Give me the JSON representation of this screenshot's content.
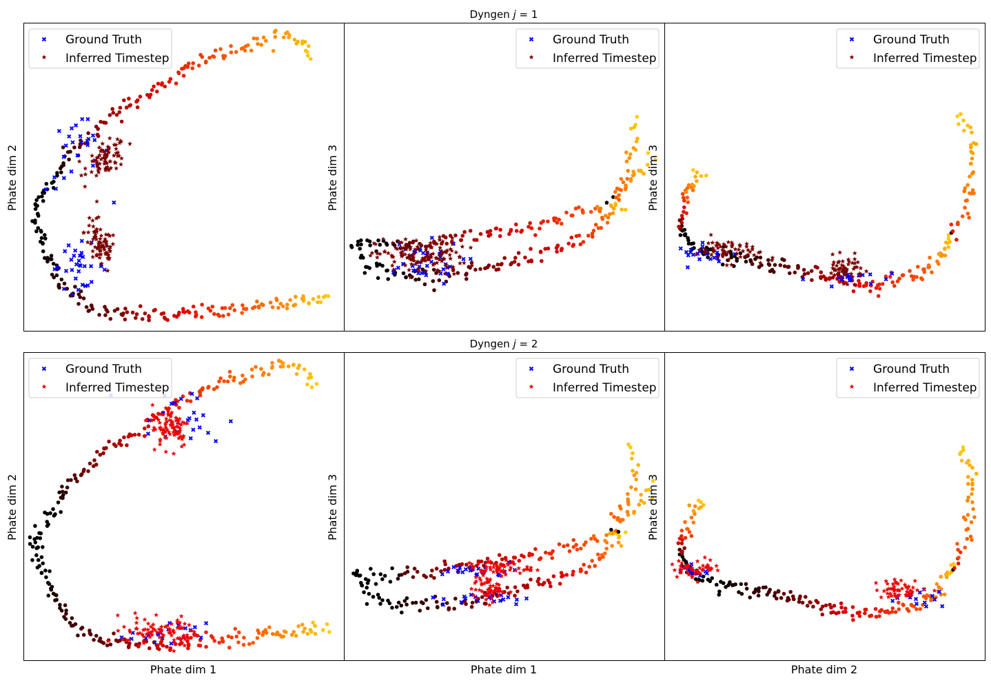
{
  "figure": {
    "titles": [
      "Dyngen j = 1",
      "Dyngen j = 2"
    ],
    "row_title_prefix": "Dyngen",
    "row_title_var": "j",
    "row_title_values": [
      "= 1",
      "= 2"
    ]
  },
  "colors": {
    "ground_truth": "#0000ff",
    "inferred_row1": "#7a0000",
    "inferred_row2": "#ee0000",
    "traj_stops": [
      "#000000",
      "#660000",
      "#dd0000",
      "#ff5500",
      "#ffcc00"
    ]
  },
  "chart_data": [
    {
      "type": "scatter",
      "row": 0,
      "col": 0,
      "xlabel": "",
      "ylabel": "Phate dim 2",
      "legend": {
        "placement": "upper-left",
        "entries": [
          "Ground Truth",
          "Inferred Timestep"
        ]
      },
      "trajectory": [
        {
          "curve": [
            [
              0.04,
              0.4
            ],
            [
              0.05,
              0.31
            ],
            [
              0.09,
              0.22
            ],
            [
              0.12,
              0.15
            ],
            [
              0.18,
              0.1
            ],
            [
              0.24,
              0.06
            ],
            [
              0.34,
              0.05
            ],
            [
              0.49,
              0.05
            ],
            [
              0.66,
              0.07
            ],
            [
              0.8,
              0.09
            ],
            [
              0.95,
              0.11
            ]
          ],
          "t": [
            0.1,
            0.38,
            0.58,
            0.78,
            1.0
          ],
          "n": 150
        },
        {
          "curve": [
            [
              0.04,
              0.4
            ],
            [
              0.09,
              0.48
            ],
            [
              0.13,
              0.56
            ],
            [
              0.2,
              0.63
            ],
            [
              0.28,
              0.7
            ],
            [
              0.36,
              0.75
            ],
            [
              0.46,
              0.82
            ],
            [
              0.54,
              0.87
            ],
            [
              0.63,
              0.91
            ],
            [
              0.73,
              0.93
            ],
            [
              0.82,
              0.96
            ],
            [
              0.87,
              0.94
            ],
            [
              0.9,
              0.89
            ]
          ],
          "t": [
            0.1,
            0.22,
            0.48,
            0.73,
            1.0
          ],
          "n": 130
        }
      ],
      "ground_truth": [
        {
          "cx": 0.17,
          "cy": 0.21,
          "sx": 0.045,
          "sy": 0.035,
          "n": 32
        },
        {
          "cx": 0.17,
          "cy": 0.57,
          "sx": 0.05,
          "sy": 0.06,
          "n": 26
        }
      ],
      "inferred": [
        {
          "cx": 0.24,
          "cy": 0.28,
          "sx": 0.025,
          "sy": 0.04,
          "r": -0.5,
          "n": 75
        },
        {
          "cx": 0.26,
          "cy": 0.56,
          "sx": 0.03,
          "sy": 0.025,
          "r": 0.5,
          "n": 75
        }
      ]
    },
    {
      "type": "scatter",
      "row": 0,
      "col": 1,
      "xlabel": "",
      "ylabel": "Phate dim 3",
      "legend": {
        "placement": "upper-right",
        "entries": [
          "Ground Truth",
          "Inferred Timestep"
        ]
      },
      "trajectory": [
        {
          "curve": [
            [
              0.04,
              0.28
            ],
            [
              0.08,
              0.21
            ],
            [
              0.16,
              0.18
            ],
            [
              0.3,
              0.18
            ],
            [
              0.45,
              0.2
            ],
            [
              0.6,
              0.25
            ],
            [
              0.7,
              0.28
            ],
            [
              0.77,
              0.31
            ],
            [
              0.82,
              0.36
            ],
            [
              0.87,
              0.41
            ]
          ],
          "t": [
            0.12,
            0.42,
            0.75,
            0.9,
            1.0
          ],
          "n": 110
        },
        {
          "curve": [
            [
              0.04,
              0.28
            ],
            [
              0.12,
              0.28
            ],
            [
              0.25,
              0.28
            ],
            [
              0.4,
              0.31
            ],
            [
              0.58,
              0.34
            ],
            [
              0.7,
              0.37
            ],
            [
              0.78,
              0.39
            ],
            [
              0.85,
              0.41
            ]
          ],
          "t": [
            0.12,
            0.2,
            0.6,
            0.92,
            1.0
          ],
          "n": 90
        },
        {
          "curve": [
            [
              0.84,
              0.43
            ],
            [
              0.9,
              0.5
            ],
            [
              0.93,
              0.53
            ],
            [
              0.96,
              0.56
            ]
          ],
          "t": [
            0.0,
            0.0,
            0.0,
            0.0,
            1.0
          ],
          "n": 20
        },
        {
          "curve": [
            [
              0.84,
              0.43
            ],
            [
              0.9,
              0.55
            ],
            [
              0.91,
              0.63
            ],
            [
              0.9,
              0.7
            ]
          ],
          "t": [
            0.0,
            0.0,
            0.0,
            0.0,
            1.0
          ],
          "n": 20
        }
      ],
      "ground_truth": [
        {
          "cx": 0.23,
          "cy": 0.22,
          "sx": 0.07,
          "sy": 0.035,
          "n": 40
        }
      ],
      "inferred": [
        {
          "cx": 0.24,
          "cy": 0.24,
          "sx": 0.07,
          "sy": 0.03,
          "r": 0,
          "n": 130
        }
      ]
    },
    {
      "type": "scatter",
      "row": 0,
      "col": 2,
      "xlabel": "",
      "ylabel": "Phate dim 3",
      "legend": {
        "placement": "upper-right",
        "entries": [
          "Ground Truth",
          "Inferred Timestep"
        ]
      },
      "trajectory": [
        {
          "curve": [
            [
              0.05,
              0.33
            ],
            [
              0.1,
              0.27
            ],
            [
              0.2,
              0.24
            ],
            [
              0.33,
              0.22
            ],
            [
              0.45,
              0.19
            ],
            [
              0.55,
              0.16
            ],
            [
              0.68,
              0.15
            ],
            [
              0.78,
              0.18
            ],
            [
              0.86,
              0.23
            ],
            [
              0.9,
              0.3
            ]
          ],
          "t": [
            0.15,
            0.42,
            0.6,
            0.86,
            1.0
          ],
          "n": 150
        },
        {
          "curve": [
            [
              0.05,
              0.33
            ],
            [
              0.06,
              0.4
            ],
            [
              0.09,
              0.47
            ],
            [
              0.12,
              0.52
            ]
          ],
          "t": [
            0.0,
            0.05,
            0.25,
            0.5,
            1.0
          ],
          "n": 30
        },
        {
          "curve": [
            [
              0.9,
              0.3
            ],
            [
              0.93,
              0.38
            ],
            [
              0.95,
              0.44
            ],
            [
              0.96,
              0.52
            ],
            [
              0.96,
              0.6
            ],
            [
              0.94,
              0.66
            ],
            [
              0.92,
              0.7
            ]
          ],
          "t": [
            0.0,
            0.0,
            0.0,
            0.18,
            1.0
          ],
          "n": 40
        }
      ],
      "ground_truth": [
        {
          "cx": 0.13,
          "cy": 0.25,
          "sx": 0.045,
          "sy": 0.015,
          "n": 22
        },
        {
          "cx": 0.6,
          "cy": 0.17,
          "sx": 0.07,
          "sy": 0.012,
          "n": 18
        }
      ],
      "inferred": [
        {
          "cx": 0.2,
          "cy": 0.26,
          "sx": 0.05,
          "sy": 0.02,
          "r": -0.3,
          "n": 60
        },
        {
          "cx": 0.56,
          "cy": 0.2,
          "sx": 0.03,
          "sy": 0.02,
          "r": 0,
          "n": 55
        }
      ]
    },
    {
      "type": "scatter",
      "row": 1,
      "col": 0,
      "xlabel": "Phate dim 1",
      "ylabel": "Phate dim 2",
      "legend": {
        "placement": "upper-left",
        "entries": [
          "Ground Truth",
          "Inferred Timestep"
        ]
      },
      "trajectory": [
        {
          "curve": [
            [
              0.04,
              0.4
            ],
            [
              0.05,
              0.31
            ],
            [
              0.09,
              0.22
            ],
            [
              0.12,
              0.15
            ],
            [
              0.18,
              0.1
            ],
            [
              0.24,
              0.06
            ],
            [
              0.34,
              0.05
            ],
            [
              0.49,
              0.05
            ],
            [
              0.66,
              0.07
            ],
            [
              0.8,
              0.09
            ],
            [
              0.95,
              0.11
            ]
          ],
          "t": [
            0.1,
            0.38,
            0.58,
            0.78,
            1.0
          ],
          "n": 150
        },
        {
          "curve": [
            [
              0.04,
              0.4
            ],
            [
              0.09,
              0.48
            ],
            [
              0.13,
              0.56
            ],
            [
              0.2,
              0.63
            ],
            [
              0.28,
              0.7
            ],
            [
              0.36,
              0.75
            ],
            [
              0.46,
              0.82
            ],
            [
              0.54,
              0.87
            ],
            [
              0.63,
              0.91
            ],
            [
              0.73,
              0.93
            ],
            [
              0.82,
              0.96
            ],
            [
              0.87,
              0.94
            ],
            [
              0.9,
              0.89
            ]
          ],
          "t": [
            0.1,
            0.22,
            0.48,
            0.73,
            1.0
          ],
          "n": 130
        }
      ],
      "ground_truth": [
        {
          "cx": 0.45,
          "cy": 0.08,
          "sx": 0.06,
          "sy": 0.02,
          "n": 20
        },
        {
          "cx": 0.48,
          "cy": 0.78,
          "sx": 0.08,
          "sy": 0.05,
          "n": 24
        }
      ],
      "inferred": [
        {
          "cx": 0.38,
          "cy": 0.1,
          "sx": 0.035,
          "sy": 0.025,
          "r": 0,
          "n": 45
        },
        {
          "cx": 0.48,
          "cy": 0.09,
          "sx": 0.03,
          "sy": 0.025,
          "r": 0,
          "n": 45
        },
        {
          "cx": 0.46,
          "cy": 0.76,
          "sx": 0.03,
          "sy": 0.035,
          "r": 0,
          "n": 80
        }
      ]
    },
    {
      "type": "scatter",
      "row": 1,
      "col": 1,
      "xlabel": "Phate dim 1",
      "ylabel": "Phate dim 3",
      "legend": {
        "placement": "upper-right",
        "entries": [
          "Ground Truth",
          "Inferred Timestep"
        ]
      },
      "trajectory": [
        {
          "curve": [
            [
              0.04,
              0.28
            ],
            [
              0.08,
              0.21
            ],
            [
              0.16,
              0.18
            ],
            [
              0.3,
              0.18
            ],
            [
              0.45,
              0.2
            ],
            [
              0.6,
              0.25
            ],
            [
              0.7,
              0.28
            ],
            [
              0.77,
              0.31
            ],
            [
              0.82,
              0.36
            ],
            [
              0.87,
              0.41
            ]
          ],
          "t": [
            0.12,
            0.42,
            0.75,
            0.9,
            1.0
          ],
          "n": 110
        },
        {
          "curve": [
            [
              0.04,
              0.28
            ],
            [
              0.12,
              0.28
            ],
            [
              0.25,
              0.28
            ],
            [
              0.4,
              0.31
            ],
            [
              0.58,
              0.34
            ],
            [
              0.7,
              0.37
            ],
            [
              0.78,
              0.39
            ],
            [
              0.85,
              0.41
            ]
          ],
          "t": [
            0.12,
            0.2,
            0.6,
            0.92,
            1.0
          ],
          "n": 90
        },
        {
          "curve": [
            [
              0.84,
              0.43
            ],
            [
              0.9,
              0.5
            ],
            [
              0.93,
              0.53
            ],
            [
              0.96,
              0.56
            ]
          ],
          "t": [
            0.0,
            0.0,
            0.0,
            0.0,
            1.0
          ],
          "n": 20
        },
        {
          "curve": [
            [
              0.84,
              0.43
            ],
            [
              0.9,
              0.55
            ],
            [
              0.91,
              0.63
            ],
            [
              0.9,
              0.7
            ]
          ],
          "t": [
            0.0,
            0.0,
            0.0,
            0.0,
            1.0
          ],
          "n": 20
        }
      ],
      "ground_truth": [
        {
          "cx": 0.42,
          "cy": 0.29,
          "sx": 0.06,
          "sy": 0.01,
          "n": 22
        },
        {
          "cx": 0.45,
          "cy": 0.2,
          "sx": 0.07,
          "sy": 0.012,
          "n": 22
        }
      ],
      "inferred": [
        {
          "cx": 0.48,
          "cy": 0.3,
          "sx": 0.05,
          "sy": 0.012,
          "r": 0,
          "n": 55
        },
        {
          "cx": 0.45,
          "cy": 0.23,
          "sx": 0.025,
          "sy": 0.02,
          "r": 0,
          "n": 55
        }
      ]
    },
    {
      "type": "scatter",
      "row": 1,
      "col": 2,
      "xlabel": "Phate dim 2",
      "ylabel": "Phate dim 3",
      "legend": {
        "placement": "upper-right",
        "entries": [
          "Ground Truth",
          "Inferred Timestep"
        ]
      },
      "trajectory": [
        {
          "curve": [
            [
              0.05,
              0.33
            ],
            [
              0.1,
              0.27
            ],
            [
              0.2,
              0.24
            ],
            [
              0.33,
              0.22
            ],
            [
              0.45,
              0.19
            ],
            [
              0.55,
              0.16
            ],
            [
              0.68,
              0.15
            ],
            [
              0.78,
              0.18
            ],
            [
              0.86,
              0.23
            ],
            [
              0.9,
              0.3
            ]
          ],
          "t": [
            0.15,
            0.42,
            0.6,
            0.86,
            1.0
          ],
          "n": 150
        },
        {
          "curve": [
            [
              0.05,
              0.33
            ],
            [
              0.06,
              0.4
            ],
            [
              0.09,
              0.47
            ],
            [
              0.12,
              0.52
            ]
          ],
          "t": [
            0.0,
            0.05,
            0.25,
            0.5,
            1.0
          ],
          "n": 30
        },
        {
          "curve": [
            [
              0.9,
              0.3
            ],
            [
              0.93,
              0.38
            ],
            [
              0.95,
              0.44
            ],
            [
              0.96,
              0.52
            ],
            [
              0.96,
              0.6
            ],
            [
              0.94,
              0.66
            ],
            [
              0.92,
              0.7
            ]
          ],
          "t": [
            0.0,
            0.0,
            0.0,
            0.18,
            1.0
          ],
          "n": 40
        }
      ],
      "ground_truth": [
        {
          "cx": 0.09,
          "cy": 0.29,
          "sx": 0.03,
          "sy": 0.01,
          "n": 18
        },
        {
          "cx": 0.8,
          "cy": 0.2,
          "sx": 0.04,
          "sy": 0.015,
          "n": 14
        }
      ],
      "inferred": [
        {
          "cx": 0.1,
          "cy": 0.3,
          "sx": 0.04,
          "sy": 0.015,
          "r": 0,
          "n": 45
        },
        {
          "cx": 0.74,
          "cy": 0.23,
          "sx": 0.04,
          "sy": 0.015,
          "r": 0,
          "n": 50
        }
      ]
    }
  ]
}
